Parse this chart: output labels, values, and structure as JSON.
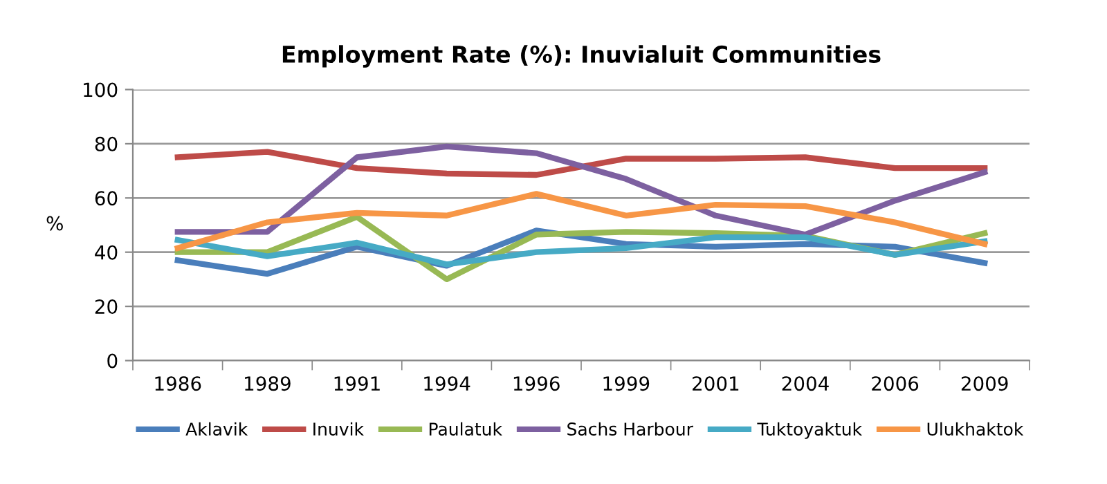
{
  "chart_data": {
    "type": "line",
    "title": "Employment Rate (%): Inuvialuit Communities",
    "ylabel": "%",
    "categories": [
      "1986",
      "1989",
      "1991",
      "1994",
      "1996",
      "1999",
      "2001",
      "2004",
      "2006",
      "2009"
    ],
    "series": [
      {
        "name": "Aklavik",
        "color": "#4a7ebb",
        "values": [
          37,
          32,
          42,
          35,
          48,
          43,
          42,
          43,
          42,
          36
        ]
      },
      {
        "name": "Inuvik",
        "color": "#be4b48",
        "values": [
          75,
          77,
          71,
          69,
          68.5,
          74.5,
          74.5,
          75,
          71,
          71
        ]
      },
      {
        "name": "Paulatuk",
        "color": "#98b954",
        "values": [
          40,
          40,
          53,
          30,
          46.5,
          47.5,
          47,
          46,
          39,
          47
        ]
      },
      {
        "name": "Sachs Harbour",
        "color": "#7d60a0",
        "values": [
          47.5,
          47.5,
          75,
          79,
          76.5,
          67,
          53.5,
          46.5,
          59,
          69.5
        ]
      },
      {
        "name": "Tuktoyaktuk",
        "color": "#46aac5",
        "values": [
          44.5,
          38.5,
          43.5,
          35.5,
          40,
          41.5,
          45.5,
          45.5,
          39,
          44
        ]
      },
      {
        "name": "Ulukhaktok",
        "color": "#f79646",
        "values": [
          41.5,
          51,
          54.5,
          53.5,
          61.5,
          53.5,
          57.5,
          57,
          51,
          43
        ]
      }
    ],
    "ylim": [
      0,
      100
    ],
    "yticks": [
      0,
      20,
      40,
      60,
      80,
      100
    ],
    "grid": "y",
    "legend": "bottom",
    "marker": "none",
    "line_style": "solid"
  }
}
